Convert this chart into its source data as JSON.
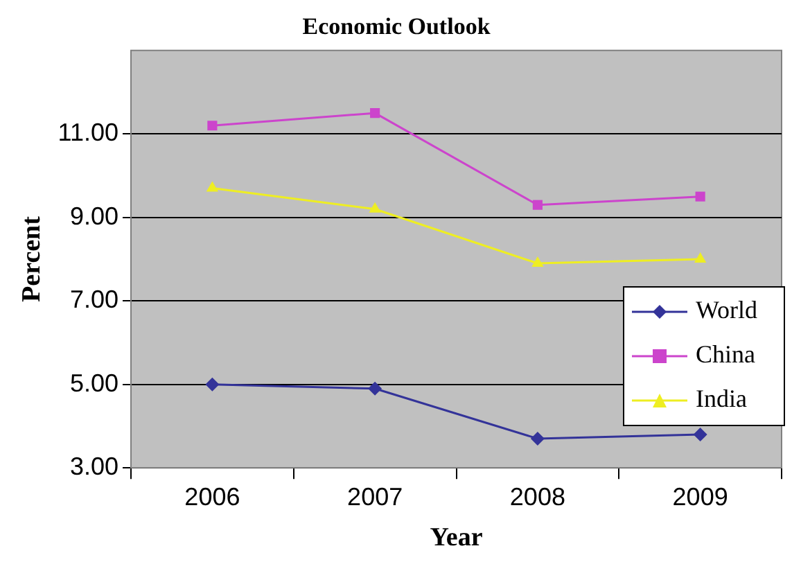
{
  "chart_data": {
    "type": "line",
    "title": "Economic Outlook",
    "xlabel": "Year",
    "ylabel": "Percent",
    "categories": [
      "2006",
      "2007",
      "2008",
      "2009"
    ],
    "series": [
      {
        "name": "World",
        "color": "#333399",
        "marker": "diamond",
        "values": [
          5.0,
          4.9,
          3.7,
          3.8
        ]
      },
      {
        "name": "China",
        "color": "#cc44cc",
        "marker": "square",
        "values": [
          11.2,
          11.5,
          9.3,
          9.5
        ]
      },
      {
        "name": "India",
        "color": "#eeee22",
        "marker": "triangle",
        "values": [
          9.7,
          9.2,
          7.9,
          8.0
        ]
      }
    ],
    "ylim": [
      3,
      13
    ],
    "yticks": [
      {
        "value": 3,
        "label": "3.00"
      },
      {
        "value": 5,
        "label": "5.00"
      },
      {
        "value": 7,
        "label": "7.00"
      },
      {
        "value": 9,
        "label": "9.00"
      },
      {
        "value": 11,
        "label": "11.00"
      }
    ],
    "grid": "y",
    "legend": "right",
    "line_style": "solid"
  }
}
